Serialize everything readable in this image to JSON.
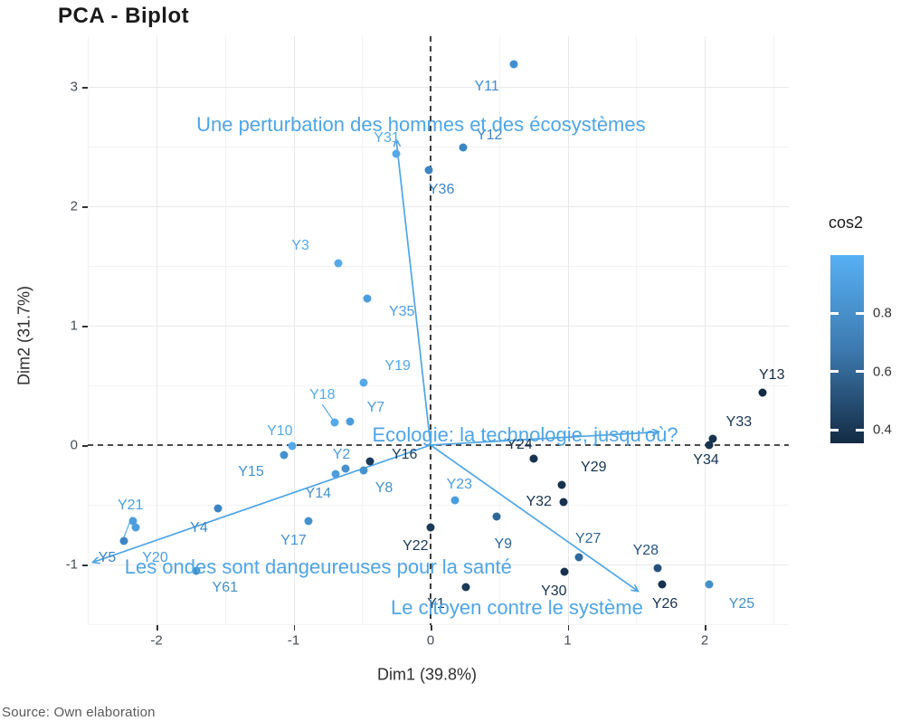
{
  "title": "PCA - Biplot",
  "source": "Source: Own elaboration",
  "axes": {
    "x": {
      "label": "Dim1 (39.8%)",
      "ticks": [
        -2,
        -1,
        0,
        1,
        2
      ]
    },
    "y": {
      "label": "Dim2 (31.7%)",
      "ticks": [
        3,
        2,
        1,
        0,
        -1
      ]
    }
  },
  "legend": {
    "title": "cos2",
    "ticks": [
      0.8,
      0.6,
      0.4
    ],
    "gradient_high": "#56B1F7",
    "gradient_low": "#132B43"
  },
  "colors": {
    "arrow": "#4fa5e6",
    "vector_label": "#4fa5e6",
    "ref_line": "#121212",
    "grid_major": "#e9e9e9",
    "grid_minor": "#f3f3f3",
    "title_text": "#1a1a1a",
    "tick_text": "#454c55"
  },
  "chart_data": {
    "type": "scatter",
    "title": "PCA - Biplot",
    "xlabel": "Dim1 (39.8%)",
    "ylabel": "Dim2 (31.7%)",
    "xlim": [
      -2.5,
      2.6
    ],
    "ylim": [
      -1.6,
      3.45
    ],
    "grid": true,
    "minor_x": [
      -2.5,
      -1.5,
      -0.5,
      0.5,
      1.5,
      2.5
    ],
    "minor_y": [
      -1.5,
      -0.5,
      0.5,
      1.5,
      2.5
    ],
    "color_scale": {
      "name": "cos2",
      "low_color": "#132B43",
      "high_color": "#56B1F7",
      "tick_values": [
        0.4,
        0.6,
        0.8
      ]
    },
    "points": [
      {
        "label": "Y1",
        "x": 0.26,
        "y": -1.19,
        "color": "#1b3a58",
        "label_x": 0.04,
        "label_y": -1.33
      },
      {
        "label": "Y2",
        "x": -0.69,
        "y": -0.24,
        "color": "#4c9dde",
        "label_x": -0.65,
        "label_y": -0.08
      },
      {
        "label": "Y3",
        "x": -0.67,
        "y": 1.52,
        "color": "#56a9e8",
        "label_x": -0.95,
        "label_y": 1.67
      },
      {
        "label": "Y4",
        "x": -1.55,
        "y": -0.53,
        "color": "#3c85c4",
        "label_x": -1.69,
        "label_y": -0.7
      },
      {
        "label": "Y5",
        "x": -2.24,
        "y": -0.8,
        "color": "#3c85c4",
        "label_x": -2.36,
        "label_y": -0.95
      },
      {
        "label": "Y7",
        "x": -0.59,
        "y": 0.2,
        "color": "#4c9dde",
        "label_x": -0.4,
        "label_y": 0.31
      },
      {
        "label": "Y8",
        "x": -0.49,
        "y": -0.21,
        "color": "#4492ce",
        "label_x": -0.34,
        "label_y": -0.36
      },
      {
        "label": "Y9",
        "x": 0.48,
        "y": -0.6,
        "color": "#2d6899",
        "label_x": 0.53,
        "label_y": -0.83
      },
      {
        "label": "Y10",
        "x": -1.01,
        "y": -0.01,
        "color": "#56a9e8",
        "label_x": -1.1,
        "label_y": 0.11
      },
      {
        "label": "Y11",
        "x": 0.61,
        "y": 3.19,
        "color": "#3f8ed2",
        "label_x": 0.41,
        "label_y": 3.0
      },
      {
        "label": "Y12",
        "x": 0.24,
        "y": 2.49,
        "color": "#3c85c4",
        "label_x": 0.43,
        "label_y": 2.59
      },
      {
        "label": "Y13",
        "x": 2.42,
        "y": 0.44,
        "color": "#142c44",
        "label_x": 2.49,
        "label_y": 0.58
      },
      {
        "label": "Y14",
        "x": -0.62,
        "y": -0.2,
        "color": "#4492ce",
        "label_x": -0.82,
        "label_y": -0.41
      },
      {
        "label": "Y15",
        "x": -1.07,
        "y": -0.08,
        "color": "#4492ce",
        "label_x": -1.31,
        "label_y": -0.23
      },
      {
        "label": "Y16",
        "x": -0.44,
        "y": -0.14,
        "color": "#1b3a58",
        "label_x": -0.19,
        "label_y": -0.08
      },
      {
        "label": "Y17",
        "x": -0.89,
        "y": -0.64,
        "color": "#4492ce",
        "label_x": -1.0,
        "label_y": -0.8
      },
      {
        "label": "Y18",
        "x": -0.7,
        "y": 0.19,
        "color": "#56a9e8",
        "label_x": -0.79,
        "label_y": 0.42
      },
      {
        "label": "Y19",
        "x": -0.49,
        "y": 0.52,
        "color": "#56a9e8",
        "label_x": -0.24,
        "label_y": 0.66
      },
      {
        "label": "Y20",
        "x": -2.15,
        "y": -0.69,
        "color": "#4c9dde",
        "label_x": -2.01,
        "label_y": -0.95
      },
      {
        "label": "Y21",
        "x": -2.17,
        "y": -0.64,
        "color": "#4c9dde",
        "label_x": -2.19,
        "label_y": -0.51
      },
      {
        "label": "Y22",
        "x": 0.0,
        "y": -0.69,
        "color": "#1b3a58",
        "label_x": -0.11,
        "label_y": -0.85
      },
      {
        "label": "Y23",
        "x": 0.18,
        "y": -0.46,
        "color": "#4c9dde",
        "label_x": 0.21,
        "label_y": -0.33
      },
      {
        "label": "Y24",
        "x": 0.75,
        "y": -0.11,
        "color": "#16324e",
        "label_x": 0.65,
        "label_y": 0.0
      },
      {
        "label": "Y25",
        "x": 2.03,
        "y": -1.17,
        "color": "#4390cb",
        "label_x": 2.27,
        "label_y": -1.33
      },
      {
        "label": "Y26",
        "x": 1.69,
        "y": -1.17,
        "color": "#16324e",
        "label_x": 1.71,
        "label_y": -1.33
      },
      {
        "label": "Y27",
        "x": 1.08,
        "y": -0.94,
        "color": "#2d6899",
        "label_x": 1.15,
        "label_y": -0.79
      },
      {
        "label": "Y28",
        "x": 1.66,
        "y": -1.03,
        "color": "#25517c",
        "label_x": 1.57,
        "label_y": -0.89
      },
      {
        "label": "Y29",
        "x": 0.96,
        "y": -0.33,
        "color": "#16324e",
        "label_x": 1.19,
        "label_y": -0.19
      },
      {
        "label": "Y30",
        "x": 0.98,
        "y": -1.06,
        "color": "#16324e",
        "label_x": 0.9,
        "label_y": -1.23
      },
      {
        "label": "Y31",
        "x": -0.25,
        "y": 2.44,
        "color": "#56a9e8",
        "label_x": -0.32,
        "label_y": 2.57
      },
      {
        "label": "Y32",
        "x": 0.97,
        "y": -0.48,
        "color": "#16324e",
        "label_x": 0.79,
        "label_y": -0.48
      },
      {
        "label": "Y33",
        "x": 2.06,
        "y": 0.05,
        "color": "#16324e",
        "label_x": 2.25,
        "label_y": 0.19
      },
      {
        "label": "Y34",
        "x": 2.03,
        "y": 0.0,
        "color": "#16324e",
        "label_x": 2.01,
        "label_y": -0.13
      },
      {
        "label": "Y35",
        "x": -0.46,
        "y": 1.23,
        "color": "#4c9dde",
        "label_x": -0.21,
        "label_y": 1.11
      },
      {
        "label": "Y36",
        "x": -0.01,
        "y": 2.3,
        "color": "#3c85c4",
        "label_x": 0.08,
        "label_y": 2.14
      },
      {
        "label": "Y61",
        "x": -1.71,
        "y": -1.05,
        "color": "#4390cb",
        "label_x": -1.5,
        "label_y": -1.2
      }
    ],
    "vectors": [
      {
        "label": "Une perturbation des hommes et des écosystèmes",
        "x": -0.25,
        "y": 2.55,
        "label_x": -0.07,
        "label_y": 2.68
      },
      {
        "label": "Ecologie: la technologie, jusqu'où?",
        "x": 1.66,
        "y": 0.11,
        "label_x": 0.69,
        "label_y": 0.08
      },
      {
        "label": "Les ondes sont dangeureuses pour la santé",
        "x": -2.46,
        "y": -0.98,
        "label_x": -0.82,
        "label_y": -1.02
      },
      {
        "label": "Le citoyen contre le système",
        "x": 1.51,
        "y": -1.22,
        "label_x": 0.63,
        "label_y": -1.36
      }
    ],
    "connectors": [
      {
        "x1": -0.79,
        "y1": 0.34,
        "x2": -0.7,
        "y2": 0.19
      },
      {
        "x1": -2.18,
        "y1": -0.6,
        "x2": -2.24,
        "y2": -0.78
      }
    ]
  }
}
